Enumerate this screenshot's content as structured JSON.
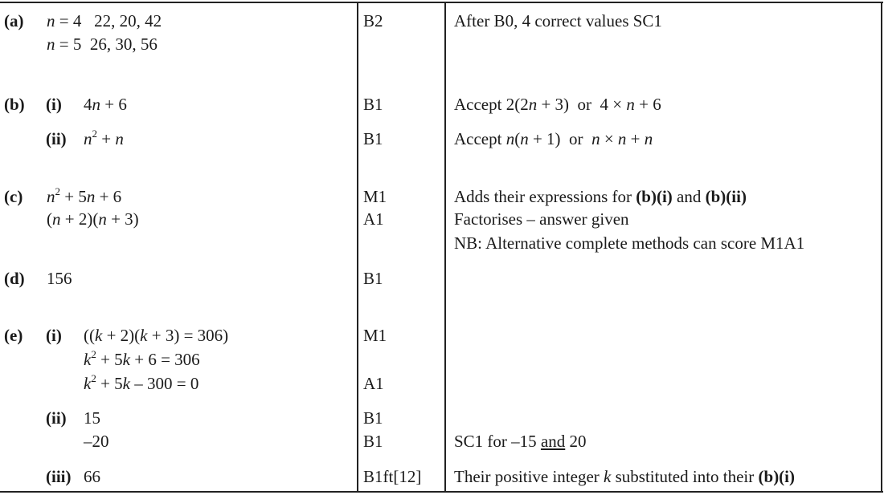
{
  "a": {
    "label": "(a)",
    "line1": [
      "n",
      " = 4   22, 20, 42"
    ],
    "line2": [
      "n",
      " = 5  26, 30, 56"
    ],
    "mark": "B2",
    "comment": "After B0, 4 correct values SC1"
  },
  "b": {
    "label": "(b)",
    "i": {
      "label": "(i)",
      "answer": [
        "4",
        "n",
        " + 6"
      ],
      "mark": "B1",
      "comment": [
        "Accept 2(2",
        "n",
        " + 3)  or  4 × ",
        "n",
        " + 6"
      ]
    },
    "ii": {
      "label": "(ii)",
      "answer": [
        "n",
        "2",
        " + ",
        "n"
      ],
      "mark": "B1",
      "comment": [
        "Accept ",
        "n",
        "(",
        "n",
        " + 1)  or  ",
        "n",
        " × ",
        "n",
        " + ",
        "n"
      ]
    }
  },
  "c": {
    "label": "(c)",
    "line1": [
      "n",
      "2",
      " + 5",
      "n",
      " + 6"
    ],
    "line2": [
      "(",
      "n",
      " + 2)(",
      "n",
      " + 3)"
    ],
    "marks": [
      "M1",
      "A1"
    ],
    "comment1": [
      "Adds their expressions for ",
      "(b)(i)",
      " and ",
      "(b)(ii)"
    ],
    "comment2": "Factorises – answer given",
    "comment3": "NB: Alternative complete methods can score M1A1"
  },
  "d": {
    "label": "(d)",
    "answer": "156",
    "mark": "B1"
  },
  "e": {
    "label": "(e)",
    "i": {
      "label": "(i)",
      "line1": [
        "((",
        "k",
        " + 2)(",
        "k",
        " + 3) = 306)"
      ],
      "line2": [
        "k",
        "2",
        " + 5",
        "k",
        " + 6 = 306"
      ],
      "line3": [
        "k",
        "2",
        " + 5",
        "k",
        " – 300 = 0"
      ],
      "marks": [
        "M1",
        "A1"
      ]
    },
    "ii": {
      "label": "(ii)",
      "answers": [
        "15",
        "–20"
      ],
      "marks": [
        "B1",
        "B1"
      ],
      "comment": [
        "SC1 for –15 ",
        "and",
        " 20"
      ]
    },
    "iii": {
      "label": "(iii)",
      "answer": "66",
      "mark": "B1ft[12]",
      "comment": [
        "Their positive integer ",
        "k",
        " substituted into their ",
        "(b)(i)"
      ]
    }
  }
}
